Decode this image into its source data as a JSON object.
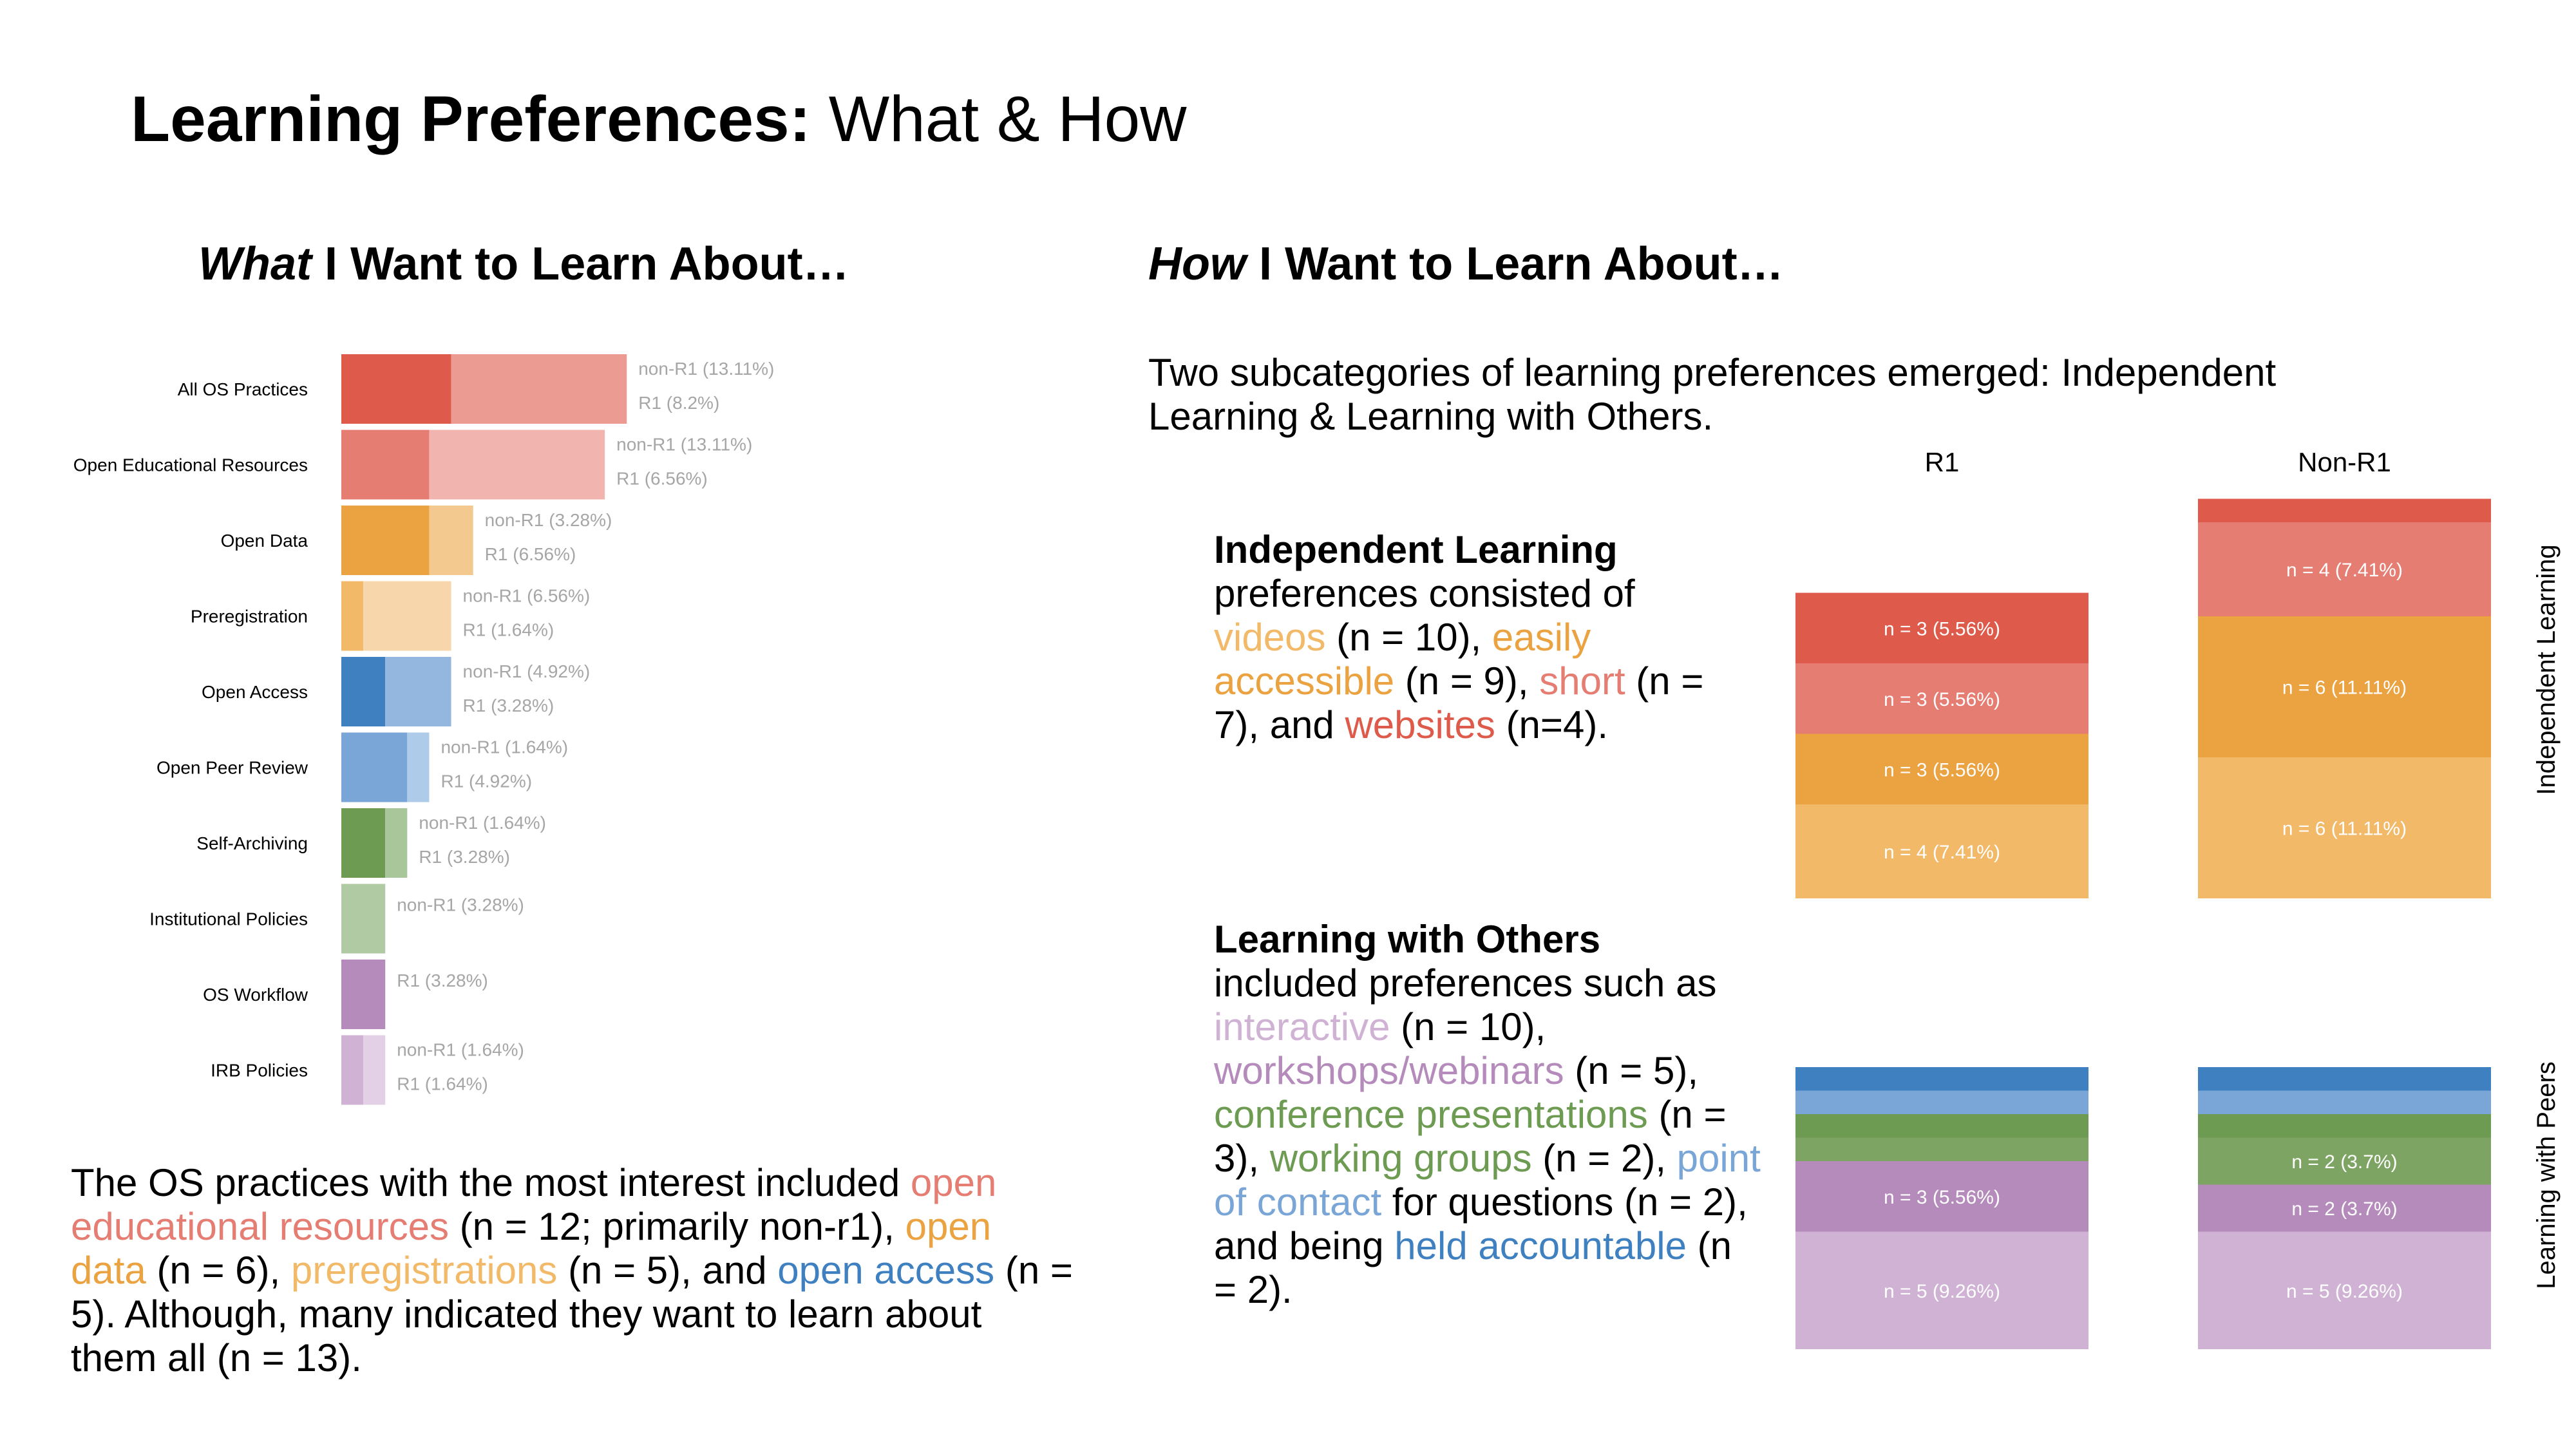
{
  "slide": {
    "title_bold": "Learning Preferences:",
    "title_rest": " What & How"
  },
  "left": {
    "heading_em": "What",
    "heading_rest": " I Want to Learn About…",
    "summary": [
      {
        "text": "The OS practices with the most interest included ",
        "color": "#000000"
      },
      {
        "text": "open educational resources",
        "color": "#e57d73"
      },
      {
        "text": " (n = 12; primarily non-r1), ",
        "color": "#000000"
      },
      {
        "text": "open data",
        "color": "#eba240"
      },
      {
        "text": " (n = 6), ",
        "color": "#000000"
      },
      {
        "text": "preregistrations",
        "color": "#f2b968"
      },
      {
        "text": " (n = 5), and ",
        "color": "#000000"
      },
      {
        "text": "open access",
        "color": "#3f80c1"
      },
      {
        "text": " (n = 5). Although, many indicated they want to learn about them all (n = 13).",
        "color": "#000000"
      }
    ]
  },
  "right": {
    "heading_em": "How",
    "heading_rest": " I Want to Learn About…",
    "intro": "Two subcategories of learning preferences emerged: Independent Learning & Learning with Others.",
    "independent_desc": [
      {
        "text": "Independent Learning",
        "bold": true,
        "br": true
      },
      {
        "text": "preferences consisted of ",
        "color": "#000000"
      },
      {
        "text": "videos",
        "color": "#f2b968"
      },
      {
        "text": " (n = 10), ",
        "color": "#000000"
      },
      {
        "text": "easily accessible",
        "color": "#eba240"
      },
      {
        "text": " (n = 9), ",
        "color": "#000000"
      },
      {
        "text": "short",
        "color": "#e57d73"
      },
      {
        "text": " (n = 7), and ",
        "color": "#000000"
      },
      {
        "text": "websites",
        "color": "#de5a4a"
      },
      {
        "text": " (n=4).",
        "color": "#000000"
      }
    ],
    "others_desc": [
      {
        "text": "Learning with Others",
        "bold": true,
        "br": true
      },
      {
        "text": "included preferences such as ",
        "color": "#000000"
      },
      {
        "text": "interactive",
        "color": "#cfb2d4"
      },
      {
        "text": " (n = 10), ",
        "color": "#000000"
      },
      {
        "text": "workshops/webinars",
        "color": "#b48bbb"
      },
      {
        "text": " (n = 5), ",
        "color": "#000000"
      },
      {
        "text": "conference presentations",
        "color": "#6d9b52"
      },
      {
        "text": " (n = 3), ",
        "color": "#000000"
      },
      {
        "text": "working groups",
        "color": "#6d9b52"
      },
      {
        "text": " (n = 2), ",
        "color": "#000000"
      },
      {
        "text": "point of contact",
        "color": "#79a6d6"
      },
      {
        "text": " for questions (n = 2), and being ",
        "color": "#000000"
      },
      {
        "text": "held accountable",
        "color": "#3f80c1"
      },
      {
        "text": " (n = 2).",
        "color": "#000000"
      }
    ]
  },
  "chart_data": [
    {
      "type": "bar",
      "orientation": "horizontal",
      "stacked": true,
      "title": "",
      "categories": [
        "All OS Practices",
        "Open Educational Resources",
        "Open Data",
        "Preregistration",
        "Open Access",
        "Open Peer Review",
        "Self-Archiving",
        "Institutional Policies",
        "OS Workflow",
        "IRB Policies"
      ],
      "series": [
        {
          "name": "R1",
          "values": [
            8.2,
            6.56,
            6.56,
            1.64,
            3.28,
            4.92,
            3.28,
            0,
            3.28,
            1.64
          ]
        },
        {
          "name": "non-R1",
          "values": [
            13.11,
            13.11,
            3.28,
            6.56,
            4.92,
            1.64,
            1.64,
            3.28,
            0,
            1.64
          ]
        }
      ],
      "colors": [
        [
          "#de5a4a",
          "#ec9b93"
        ],
        [
          "#e57d73",
          "#f1b4ae"
        ],
        [
          "#eba240",
          "#f3c98f"
        ],
        [
          "#f2b968",
          "#f7d6ab"
        ],
        [
          "#3f80c1",
          "#93b7df"
        ],
        [
          "#79a6d6",
          "#aecbea"
        ],
        [
          "#6d9b52",
          "#a9c59a"
        ],
        [
          "#b0caa3",
          "#b0caa3"
        ],
        [
          "#b48bbb",
          "#b48bbb"
        ],
        [
          "#cfb2d4",
          "#e3d0e6"
        ]
      ],
      "labels": [
        [
          "non-R1 (13.11%)",
          "R1 (8.2%)"
        ],
        [
          "non-R1 (13.11%)",
          "R1 (6.56%)"
        ],
        [
          "non-R1 (3.28%)",
          "R1 (6.56%)"
        ],
        [
          "non-R1 (6.56%)",
          "R1 (1.64%)"
        ],
        [
          "non-R1 (4.92%)",
          "R1 (3.28%)"
        ],
        [
          "non-R1 (1.64%)",
          "R1 (4.92%)"
        ],
        [
          "non-R1 (1.64%)",
          "R1 (3.28%)"
        ],
        [
          "non-R1 (3.28%)"
        ],
        [
          "R1 (3.28%)"
        ],
        [
          "non-R1 (1.64%)",
          "R1 (1.64%)"
        ]
      ]
    },
    {
      "type": "bar",
      "orientation": "vertical",
      "stacked": true,
      "title": "",
      "categories": [
        "R1",
        "Non-R1"
      ],
      "groups": [
        {
          "name": "Independent Learning",
          "segments": [
            {
              "color": "#de5a4a",
              "values": [
                3,
                1
              ],
              "labels": [
                "n = 3 (5.56%)",
                ""
              ]
            },
            {
              "color": "#e57d73",
              "values": [
                3,
                4
              ],
              "labels": [
                "n = 3 (5.56%)",
                "n = 4 (7.41%)"
              ]
            },
            {
              "color": "#eba240",
              "values": [
                3,
                6
              ],
              "labels": [
                "n = 3 (5.56%)",
                "n = 6 (11.11%)"
              ]
            },
            {
              "color": "#f2b968",
              "values": [
                4,
                6
              ],
              "labels": [
                "n = 4 (7.41%)",
                "n = 6 (11.11%)"
              ]
            }
          ]
        },
        {
          "name": "Learning with Peers",
          "segments": [
            {
              "color": "#3f80c1",
              "values": [
                1,
                1
              ],
              "labels": [
                "",
                ""
              ]
            },
            {
              "color": "#79a6d6",
              "values": [
                1,
                1
              ],
              "labels": [
                "",
                ""
              ]
            },
            {
              "color": "#6d9b52",
              "values": [
                1,
                1
              ],
              "labels": [
                "",
                ""
              ]
            },
            {
              "color": "#7ea463",
              "values": [
                1,
                2
              ],
              "labels": [
                "",
                "n = 2 (3.7%)"
              ]
            },
            {
              "color": "#b48bbb",
              "values": [
                3,
                2
              ],
              "labels": [
                "n = 3 (5.56%)",
                "n = 2 (3.7%)"
              ]
            },
            {
              "color": "#cfb2d4",
              "values": [
                5,
                5
              ],
              "labels": [
                "n = 5 (9.26%)",
                "n = 5 (9.26%)"
              ]
            }
          ]
        }
      ]
    }
  ]
}
